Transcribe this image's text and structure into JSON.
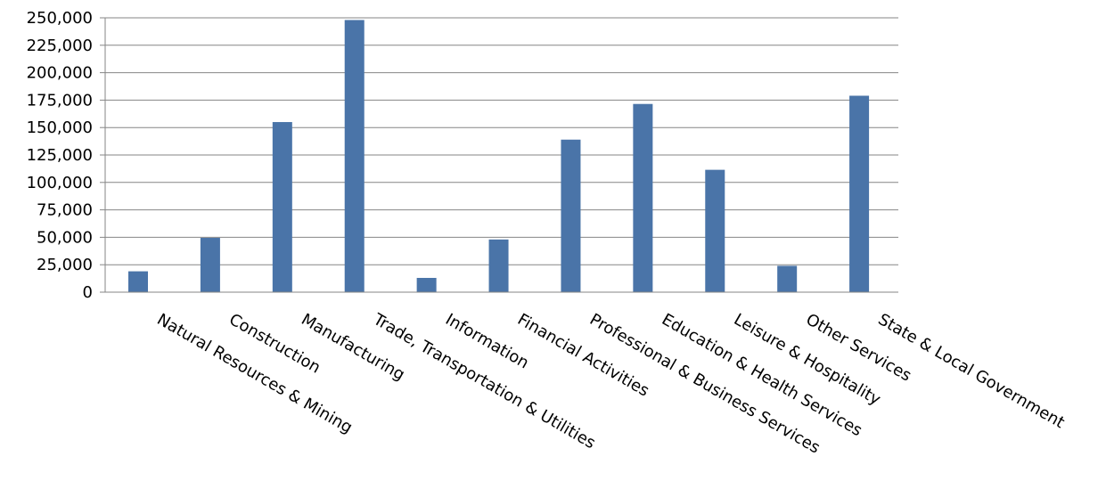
{
  "chart_data": {
    "type": "bar",
    "categories": [
      "Natural Resources & Mining",
      "Construction",
      "Manufacturing",
      "Trade, Transportation & Utilities",
      "Information",
      "Financial Activities",
      "Professional & Business Services",
      "Education & Health Services",
      "Leisure & Hospitality",
      "Other Services",
      "State & Local Government"
    ],
    "values": [
      19000,
      49500,
      155000,
      248000,
      13000,
      48000,
      139000,
      171500,
      111500,
      24000,
      179000
    ],
    "title": "",
    "xlabel": "",
    "ylabel": "",
    "ylim": [
      0,
      250000
    ],
    "ytick_step": 25000,
    "ytick_labels": [
      "0",
      "25,000",
      "50,000",
      "75,000",
      "100,000",
      "125,000",
      "150,000",
      "175,000",
      "200,000",
      "225,000",
      "250,000"
    ],
    "grid": true,
    "legend": "none",
    "bar_color": "#4a74a8",
    "grid_color": "#868686"
  }
}
